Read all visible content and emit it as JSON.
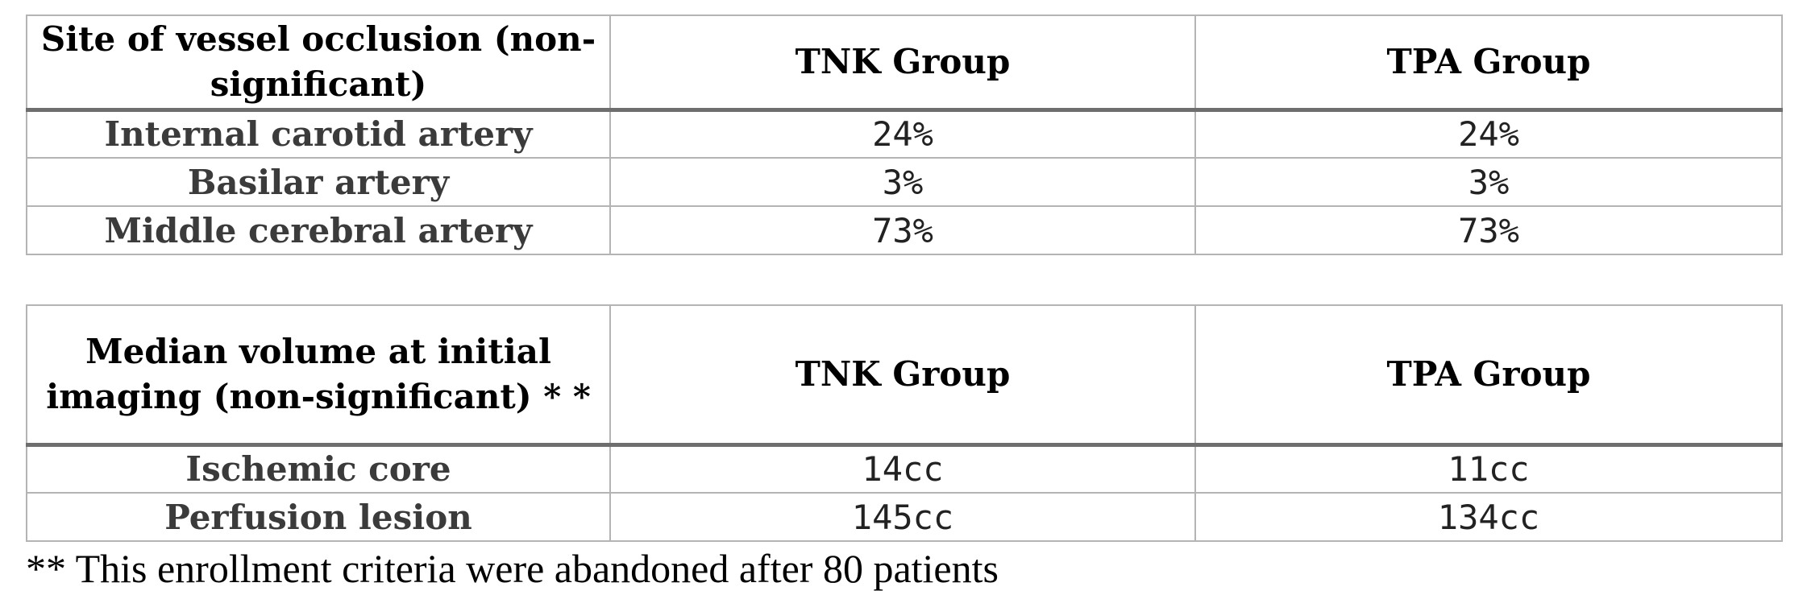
{
  "tables": [
    {
      "headers": [
        "Site of vessel occlusion (non- significant)",
        "TNK Group",
        "TPA Group"
      ],
      "rows": [
        {
          "label": "Internal carotid artery",
          "tnk": "24%",
          "tpa": "24%"
        },
        {
          "label": "Basilar artery",
          "tnk": "3%",
          "tpa": "3%"
        },
        {
          "label": "Middle cerebral artery",
          "tnk": "73%",
          "tpa": "73%"
        }
      ]
    },
    {
      "headers": [
        "Median volume at initial imaging (non-significant) * *",
        "TNK Group",
        "TPA Group"
      ],
      "rows": [
        {
          "label": "Ischemic core",
          "tnk": "14cc",
          "tpa": "11cc"
        },
        {
          "label": "Perfusion lesion",
          "tnk": "145cc",
          "tpa": "134cc"
        }
      ]
    }
  ],
  "footnote": "** This enrollment criteria were abandoned after 80 patients"
}
